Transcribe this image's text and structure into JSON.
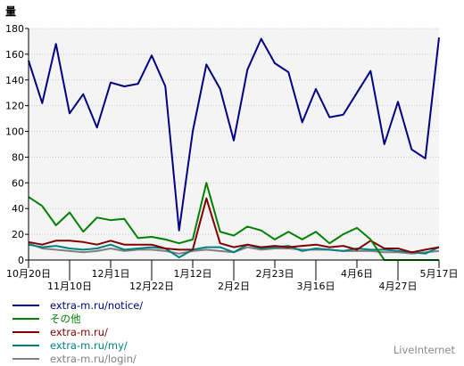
{
  "chart_data": {
    "type": "line",
    "ylabel": "量",
    "ylim": [
      0,
      180
    ],
    "y_ticks": [
      0,
      20,
      40,
      60,
      80,
      100,
      120,
      140,
      160,
      180
    ],
    "grid": true,
    "legend_position": "bottom-left",
    "x_ticks_row1": [
      {
        "label": "10月20日",
        "index": 0
      },
      {
        "label": "12月1日",
        "index": 6
      },
      {
        "label": "1月12日",
        "index": 12
      },
      {
        "label": "2月23日",
        "index": 18
      },
      {
        "label": "4月6日",
        "index": 24
      },
      {
        "label": "5月17日",
        "index": 30
      }
    ],
    "x_ticks_row2": [
      {
        "label": "11月10日",
        "index": 3
      },
      {
        "label": "12月22日",
        "index": 9
      },
      {
        "label": "2月2日",
        "index": 15
      },
      {
        "label": "3月16日",
        "index": 21
      },
      {
        "label": "4月27日",
        "index": 27
      }
    ],
    "series": [
      {
        "name": "extra-m.ru/notice/",
        "color": "#000080",
        "values": [
          155,
          122,
          168,
          114,
          129,
          103,
          138,
          135,
          137,
          159,
          135,
          23,
          100,
          152,
          133,
          93,
          148,
          172,
          153,
          146,
          107,
          133,
          111,
          113,
          130,
          147,
          90,
          123,
          86,
          79,
          173
        ]
      },
      {
        "name": "その他",
        "color": "#008000",
        "values": [
          49,
          42,
          27,
          37,
          22,
          33,
          31,
          32,
          17,
          18,
          16,
          13,
          16,
          60,
          22,
          19,
          26,
          23,
          16,
          22,
          16,
          22,
          13,
          20,
          25,
          16,
          0,
          0,
          0,
          0,
          0
        ]
      },
      {
        "name": "extra-m.ru/",
        "color": "#800000",
        "values": [
          14,
          12,
          15,
          15,
          14,
          12,
          15,
          12,
          12,
          12,
          9,
          8,
          8,
          48,
          13,
          10,
          12,
          10,
          11,
          10,
          11,
          12,
          10,
          11,
          8,
          15,
          9,
          9,
          6,
          8,
          10
        ]
      },
      {
        "name": "extra-m.ru/my/",
        "color": "#008080",
        "values": [
          12,
          10,
          11,
          9,
          8,
          9,
          12,
          8,
          9,
          10,
          9,
          2,
          8,
          10,
          10,
          6,
          12,
          9,
          10,
          11,
          7,
          9,
          8,
          7,
          9,
          8,
          8,
          7,
          6,
          5,
          10
        ]
      },
      {
        "name": "extra-m.ru/login/",
        "color": "#808080",
        "values": [
          13,
          9,
          8,
          7,
          6,
          7,
          9,
          7,
          8,
          8,
          7,
          5,
          7,
          8,
          7,
          6,
          10,
          8,
          9,
          9,
          8,
          8,
          8,
          7,
          7,
          7,
          6,
          6,
          5,
          6,
          7
        ]
      }
    ]
  },
  "brand": "LiveInternet"
}
